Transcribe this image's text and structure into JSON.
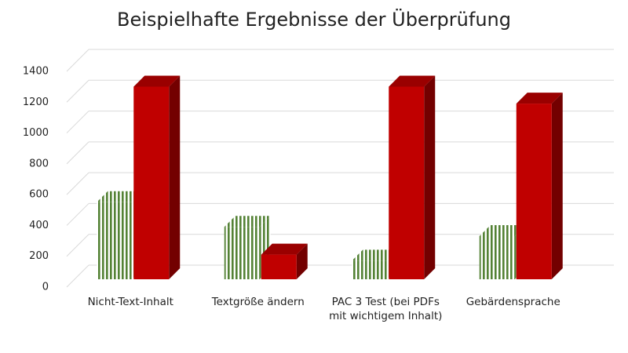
{
  "chart_data": {
    "type": "bar3d",
    "title": "Beispielhafte Ergebnisse der Überprüfung",
    "categories": [
      "Nicht-Text-Inhalt",
      "Textgröße ändern",
      "PAC 3 Test (bei PDFs mit wichtigem Inhalt)",
      "Gebärdensprache"
    ],
    "series": [
      {
        "color": "#548235",
        "pattern": "vertical-stripes",
        "values": [
          500,
          340,
          120,
          280
        ]
      },
      {
        "color": "#c00000",
        "values": [
          1250,
          160,
          1250,
          1140
        ]
      }
    ],
    "ylim": [
      0,
      1400
    ],
    "yticks": [
      0,
      200,
      400,
      600,
      800,
      1000,
      1200,
      1400
    ],
    "grid": true
  }
}
